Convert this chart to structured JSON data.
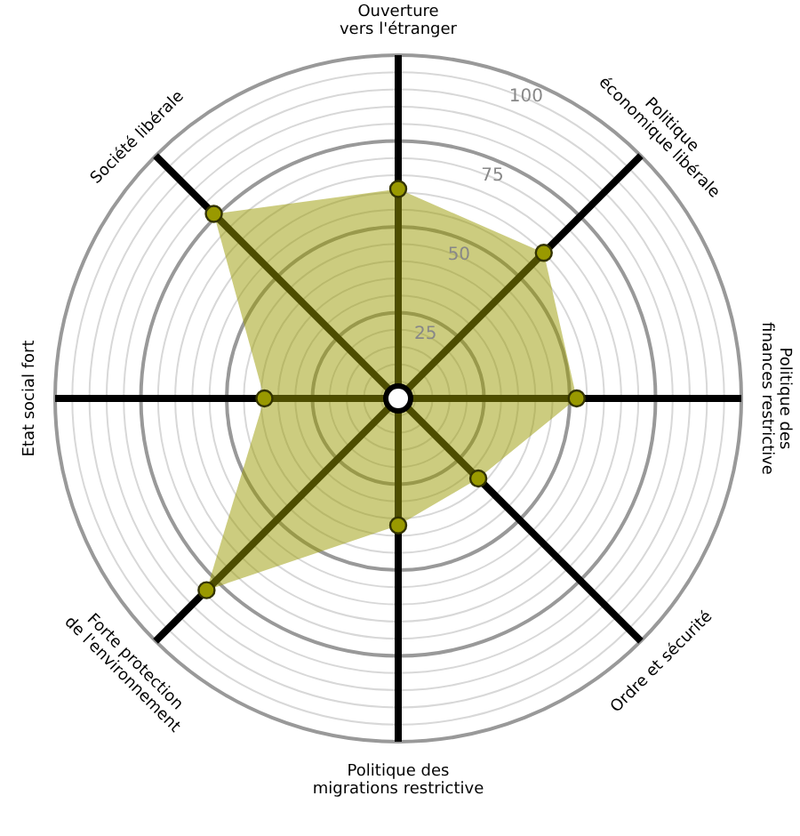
{
  "chart_data": {
    "type": "radar",
    "categories": [
      "Ouverture\nvers l'étranger",
      "Politique\néconomique libérale",
      "Politique des\nfinances restrictive",
      "Ordre et sécurité",
      "Politique des\nmigrations restrictive",
      "Forte protection\nde l'environnement",
      "Etat social fort",
      "Société libérale"
    ],
    "series": [
      {
        "color": "#999900",
        "values": [
          61,
          60,
          52,
          33,
          37,
          79,
          39,
          76
        ]
      }
    ],
    "ylim": [
      0,
      100
    ],
    "yticks": [
      25,
      50,
      75,
      100
    ],
    "grid": true,
    "marker": "circle",
    "legend": false
  }
}
